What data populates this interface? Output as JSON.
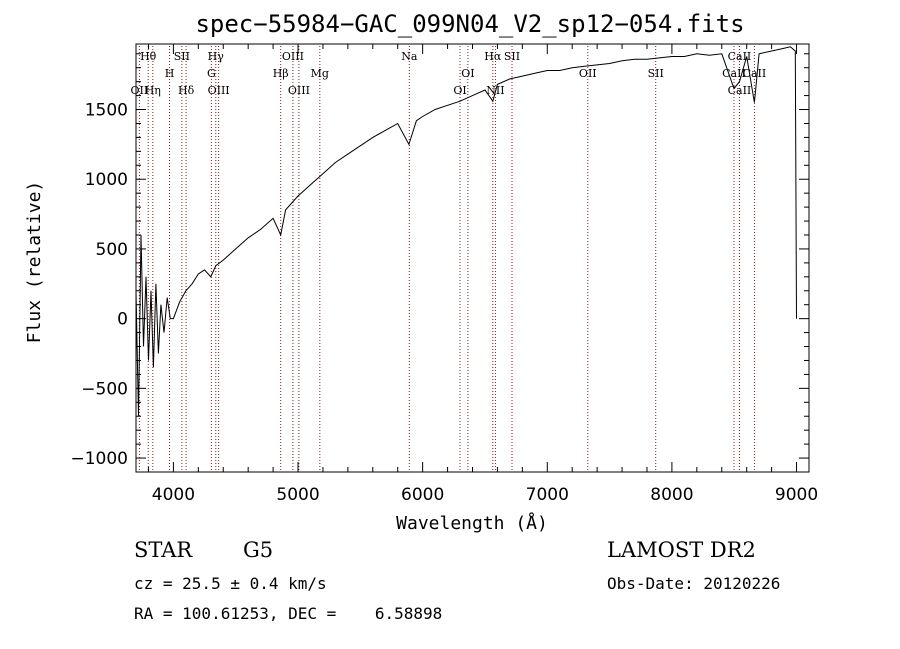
{
  "chart_data": {
    "type": "line",
    "title": "spec−55984−GAC_099N04_V2_sp12−054.fits",
    "xlabel": "Wavelength (Å)",
    "ylabel": "Flux (relative)",
    "xlim": [
      3700,
      9100
    ],
    "ylim": [
      -1100,
      1970
    ],
    "xticks": [
      4000,
      5000,
      6000,
      7000,
      8000,
      9000
    ],
    "xtick_labels": [
      "4000",
      "5000",
      "6000",
      "7000",
      "8000",
      "9000"
    ],
    "yticks": [
      -1000,
      -500,
      0,
      500,
      1000,
      1500
    ],
    "ytick_labels": [
      "−1000",
      "−500",
      "0",
      "500",
      "1000",
      "1500"
    ],
    "grid": false,
    "series": [
      {
        "x": [
          3700,
          3720,
          3740,
          3760,
          3780,
          3800,
          3820,
          3840,
          3860,
          3880,
          3900,
          3925,
          3950,
          3975,
          4000,
          4050,
          4100,
          4150,
          4200,
          4250,
          4300,
          4340,
          4400,
          4500,
          4600,
          4700,
          4800,
          4861,
          4900,
          5000,
          5100,
          5200,
          5300,
          5400,
          5500,
          5600,
          5700,
          5800,
          5890,
          5950,
          6000,
          6100,
          6200,
          6300,
          6400,
          6500,
          6563,
          6600,
          6700,
          6800,
          6900,
          7000,
          7100,
          7200,
          7300,
          7400,
          7500,
          7600,
          7700,
          7800,
          7900,
          8000,
          8100,
          8200,
          8300,
          8400,
          8498,
          8542,
          8600,
          8662,
          8700,
          8800,
          8900,
          8950,
          8990,
          9000
        ],
        "y": [
          200,
          -700,
          600,
          -200,
          300,
          -300,
          200,
          -350,
          250,
          -250,
          100,
          -100,
          150,
          0,
          0,
          120,
          200,
          250,
          320,
          350,
          300,
          380,
          420,
          500,
          580,
          640,
          720,
          600,
          780,
          880,
          960,
          1040,
          1120,
          1180,
          1240,
          1300,
          1350,
          1400,
          1250,
          1420,
          1450,
          1500,
          1530,
          1560,
          1600,
          1640,
          1560,
          1680,
          1720,
          1740,
          1760,
          1780,
          1780,
          1800,
          1810,
          1820,
          1830,
          1850,
          1860,
          1860,
          1870,
          1880,
          1880,
          1900,
          1890,
          1900,
          1650,
          1700,
          1880,
          1550,
          1900,
          1920,
          1940,
          1950,
          1920,
          0
        ]
      }
    ],
    "line_markers": [
      {
        "name": "Hθ",
        "wavelength": 3798,
        "row": 0
      },
      {
        "name": "SII",
        "wavelength": 4068,
        "row": 0
      },
      {
        "name": "Hγ",
        "wavelength": 4340,
        "row": 0
      },
      {
        "name": "OIII",
        "wavelength": 4959,
        "row": 0
      },
      {
        "name": "Na",
        "wavelength": 5893,
        "row": 0
      },
      {
        "name": "Hα",
        "wavelength": 6563,
        "row": 0
      },
      {
        "name": "SII",
        "wavelength": 6717,
        "row": 0
      },
      {
        "name": "CaII",
        "wavelength": 8542,
        "row": 0
      },
      {
        "name": "H",
        "wavelength": 3969,
        "row": 1
      },
      {
        "name": "G",
        "wavelength": 4305,
        "row": 1
      },
      {
        "name": "Hβ",
        "wavelength": 4861,
        "row": 1
      },
      {
        "name": "Mg",
        "wavelength": 5175,
        "row": 1
      },
      {
        "name": "OI",
        "wavelength": 6363,
        "row": 1
      },
      {
        "name": "OII",
        "wavelength": 7325,
        "row": 1
      },
      {
        "name": "SII",
        "wavelength": 7870,
        "row": 1
      },
      {
        "name": "CaII",
        "wavelength": 8498,
        "row": 1
      },
      {
        "name": "CaII",
        "wavelength": 8662,
        "row": 1
      },
      {
        "name": "OII",
        "wavelength": 3727,
        "row": 2
      },
      {
        "name": "Hη",
        "wavelength": 3835,
        "row": 2
      },
      {
        "name": "Hδ",
        "wavelength": 4102,
        "row": 2
      },
      {
        "name": "OIII",
        "wavelength": 4363,
        "row": 2
      },
      {
        "name": "OIII",
        "wavelength": 5007,
        "row": 2
      },
      {
        "name": "OI",
        "wavelength": 6300,
        "row": 2
      },
      {
        "name": "NII",
        "wavelength": 6584,
        "row": 2
      },
      {
        "name": "CaII",
        "wavelength": 8542,
        "row": 2
      }
    ],
    "marker_color": "#8b1a1a"
  },
  "info": {
    "object_class": "STAR",
    "subclass": "G5",
    "survey": "LAMOST DR2",
    "redshift": "cz = 25.5 ± 0.4 km/s",
    "obs_date": "Obs-Date: 20120226",
    "coords": "RA = 100.61253, DEC =    6.58898"
  }
}
